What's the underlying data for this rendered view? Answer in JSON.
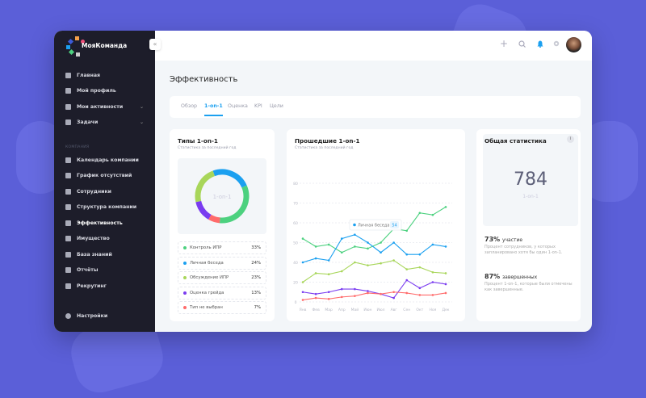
{
  "app": {
    "brand": "МояКоманда"
  },
  "sidebar": {
    "items": [
      {
        "label": "Главная",
        "icon": "home-icon"
      },
      {
        "label": "Мой профиль",
        "icon": "user-icon"
      },
      {
        "label": "Мои активности",
        "icon": "grid-icon",
        "chevron": true
      },
      {
        "label": "Задачи",
        "icon": "tasks-icon",
        "chevron": true
      }
    ],
    "section": "КОМПАНИЯ",
    "company": [
      {
        "label": "Календарь компании",
        "icon": "calendar-icon"
      },
      {
        "label": "График отсутствий",
        "icon": "schedule-icon"
      },
      {
        "label": "Сотрудники",
        "icon": "users-icon"
      },
      {
        "label": "Структура компании",
        "icon": "structure-icon"
      },
      {
        "label": "Эффективность",
        "icon": "chart-icon"
      },
      {
        "label": "Имущество",
        "icon": "property-icon"
      },
      {
        "label": "База знаний",
        "icon": "book-icon"
      },
      {
        "label": "Отчёты",
        "icon": "report-icon"
      },
      {
        "label": "Рекрутинг",
        "icon": "briefcase-icon"
      }
    ],
    "settings": "Настройки"
  },
  "header": {
    "icons": [
      "plus-icon",
      "search-icon",
      "bell-icon",
      "gear-icon"
    ]
  },
  "page": {
    "title": "Эффективность",
    "tabs": [
      "Обзор",
      "1-on-1",
      "Оценка",
      "KPI",
      "Цели"
    ],
    "active_tab": "1-on-1"
  },
  "types": {
    "title": "Типы 1-on-1",
    "subtitle": "Статистика за последний год",
    "center": "1-on-1",
    "items": [
      {
        "label": "Контроль ИПР",
        "pct": "33%",
        "value": 33,
        "color": "#4cd17f"
      },
      {
        "label": "Личная беседа",
        "pct": "24%",
        "value": 24,
        "color": "#1ba0f0"
      },
      {
        "label": "Обсуждение ИПР",
        "pct": "23%",
        "value": 23,
        "color": "#a8d65a"
      },
      {
        "label": "Оценка грейда",
        "pct": "13%",
        "value": 13,
        "color": "#7a3cf0"
      },
      {
        "label": "Тип не выбран",
        "pct": "7%",
        "value": 7,
        "color": "#ff6b6b"
      }
    ]
  },
  "chart_data": {
    "type": "line",
    "title": "Прошедшие 1-on-1",
    "subtitle": "Статистика за последний год",
    "categories": [
      "Янв",
      "Фев",
      "Мар",
      "Апр",
      "Май",
      "Июн",
      "Июл",
      "Авг",
      "Сен",
      "Окт",
      "Ноя",
      "Дек"
    ],
    "yticks": [
      0,
      20,
      40,
      50,
      60,
      70,
      80
    ],
    "ylim": [
      0,
      80
    ],
    "grid": true,
    "tooltip": {
      "label": "Личная беседа",
      "value": "54"
    },
    "series": [
      {
        "name": "Контроль ИПР",
        "color": "#4cd17f",
        "values": [
          52,
          48,
          49,
          45,
          48,
          47,
          50,
          57,
          56,
          65,
          64,
          68
        ]
      },
      {
        "name": "Личная беседа",
        "color": "#1ba0f0",
        "values": [
          40,
          42,
          41,
          52,
          54,
          50,
          45,
          50,
          44,
          44,
          49,
          48
        ]
      },
      {
        "name": "Обсуждение ИПР",
        "color": "#a8d65a",
        "values": [
          20,
          29,
          28,
          31,
          40,
          37,
          39,
          41,
          33,
          35,
          30,
          29
        ]
      },
      {
        "name": "Оценка грейда",
        "color": "#7a3cf0",
        "values": [
          10,
          8,
          10,
          13,
          13,
          11,
          8,
          4,
          22,
          14,
          20,
          18
        ]
      },
      {
        "name": "Тип не выбран",
        "color": "#ff6b6b",
        "values": [
          2,
          4,
          3,
          5,
          6,
          9,
          8,
          10,
          9,
          7,
          7,
          9
        ]
      }
    ]
  },
  "stats": {
    "title": "Общая статистика",
    "total": "784",
    "total_label": "1-on-1",
    "participation": {
      "value": "73%",
      "label": "участие",
      "desc": "Процент сотрудников, у которых запланировано хотя бы один 1-on-1."
    },
    "completed": {
      "value": "87%",
      "label": "завершенных",
      "desc": "Процент 1-on-1, которые были отмечены как завершенные."
    }
  }
}
